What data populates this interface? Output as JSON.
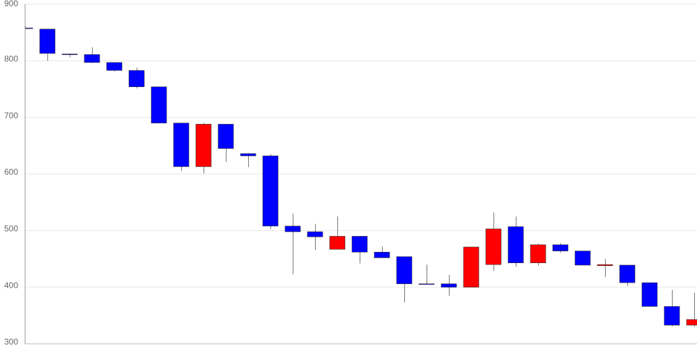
{
  "chart_data": {
    "type": "candlestick",
    "categories": [
      null,
      null,
      null,
      null,
      null,
      null,
      null,
      null,
      null,
      null,
      null,
      null,
      null,
      null,
      null,
      null,
      null,
      null,
      null,
      null,
      null,
      null,
      null,
      null,
      null,
      null,
      null,
      null,
      null,
      null,
      null
    ],
    "open": [
      858,
      856,
      812,
      811,
      797,
      783,
      754,
      690,
      613,
      688,
      636,
      632,
      508,
      498,
      467,
      490,
      462,
      454,
      406,
      406,
      400,
      440,
      507,
      443,
      475,
      464,
      438,
      439,
      408,
      366,
      333
    ],
    "high": [
      862,
      856,
      813,
      824,
      797,
      788,
      754,
      690,
      690,
      688,
      637,
      635,
      530,
      512,
      525,
      490,
      472,
      454,
      440,
      422,
      471,
      532,
      525,
      477,
      478,
      464,
      450,
      439,
      408,
      395,
      390
    ],
    "low": [
      856,
      800,
      806,
      796,
      781,
      751,
      690,
      605,
      601,
      621,
      612,
      503,
      423,
      466,
      467,
      442,
      452,
      373,
      405,
      385,
      400,
      429,
      436,
      438,
      461,
      439,
      418,
      402,
      366,
      331,
      330
    ],
    "close": [
      857,
      813,
      811,
      797,
      783,
      754,
      690,
      613,
      688,
      645,
      632,
      508,
      498,
      489,
      490,
      462,
      452,
      406,
      405,
      400,
      471,
      503,
      443,
      475,
      464,
      439,
      440,
      408,
      366,
      333,
      343
    ],
    "up_color": "#ff0000",
    "down_color": "#0000ff",
    "ylim": [
      300,
      900
    ],
    "yticks": [
      300,
      400,
      500,
      600,
      700,
      800,
      900
    ],
    "grid": true
  }
}
